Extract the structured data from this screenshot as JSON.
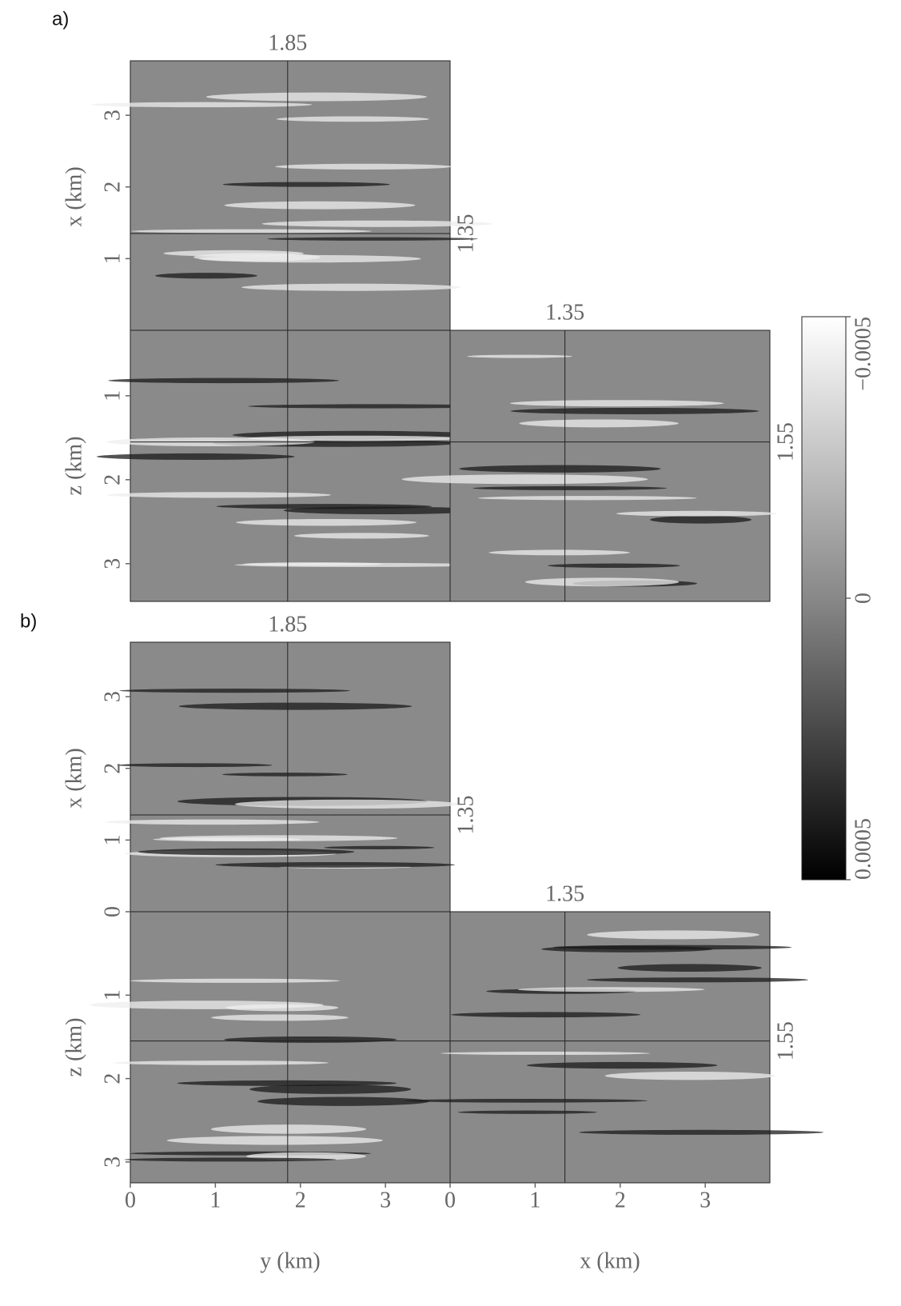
{
  "panels": [
    {
      "label": "a)",
      "slices": {
        "y": 1.85,
        "x": 1.35,
        "z": 1.55
      },
      "zlim": [
        0.22,
        3.45
      ],
      "zticks": [
        1,
        2,
        3
      ]
    },
    {
      "label": "b)",
      "slices": {
        "y": 1.85,
        "x": 1.35,
        "z": 1.55
      },
      "zlim": [
        0,
        3.25
      ],
      "zticks": [
        0,
        1,
        2,
        3
      ]
    }
  ],
  "axes": {
    "y_label": "y (km)",
    "x_label": "x (km)",
    "z_label": "z (km)",
    "ylim": [
      0,
      3.76
    ],
    "yticks": [
      0,
      1,
      2,
      3
    ],
    "xlim": [
      0,
      3.76
    ],
    "xticks": [
      0,
      1,
      2,
      3
    ],
    "side_xticks": [
      1,
      2,
      3
    ]
  },
  "colorbar": {
    "lim": [
      -0.0005,
      0.0005
    ],
    "ticks": [
      {
        "value": -0.0005,
        "label": "−0.0005"
      },
      0,
      {
        "value": 0.0005,
        "label": "0.0005"
      }
    ]
  }
}
